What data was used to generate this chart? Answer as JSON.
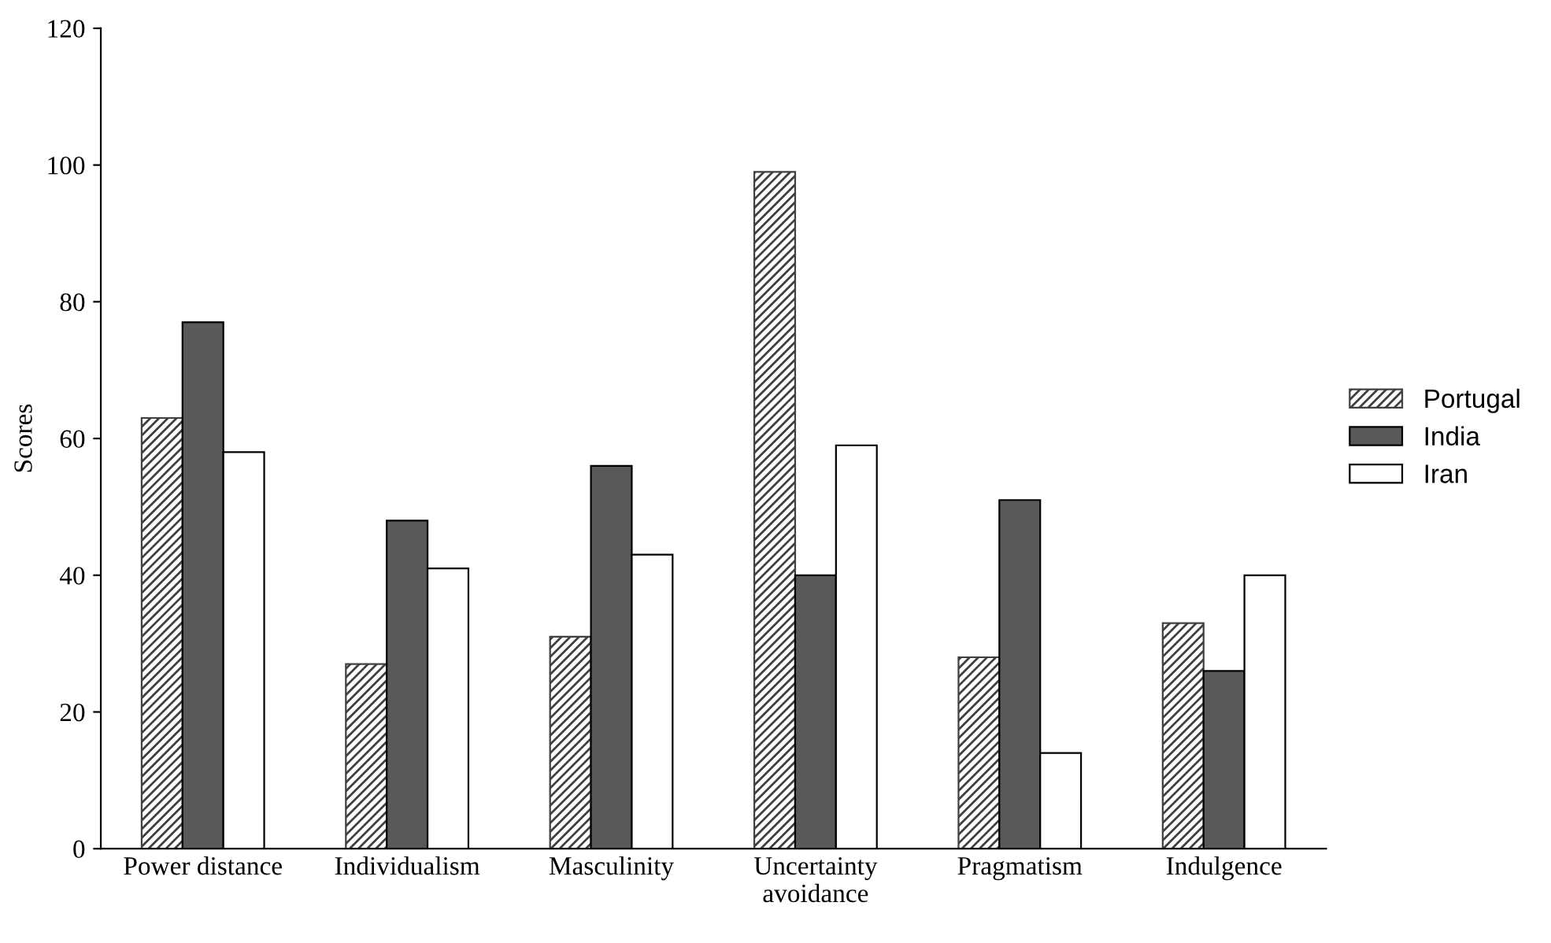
{
  "chart_data": {
    "type": "bar",
    "ylabel": "Scores",
    "categories": [
      "Power distance",
      "Individualism",
      "Masculinity",
      "Uncertainty\navoidance",
      "Pragmatism",
      "Indulgence"
    ],
    "series": [
      {
        "name": "Portugal",
        "color": "#404040",
        "values": [
          63,
          27,
          31,
          99,
          28,
          33
        ]
      },
      {
        "name": "India",
        "color": "#595959",
        "values": [
          77,
          48,
          56,
          40,
          51,
          26
        ]
      },
      {
        "name": "Iran",
        "color": "#ffffff",
        "values": [
          58,
          41,
          43,
          59,
          14,
          40
        ]
      }
    ],
    "ylim": [
      0,
      120
    ],
    "yticks": [
      0,
      20,
      40,
      60,
      80,
      100,
      120
    ],
    "grid": false,
    "legend": "right"
  }
}
